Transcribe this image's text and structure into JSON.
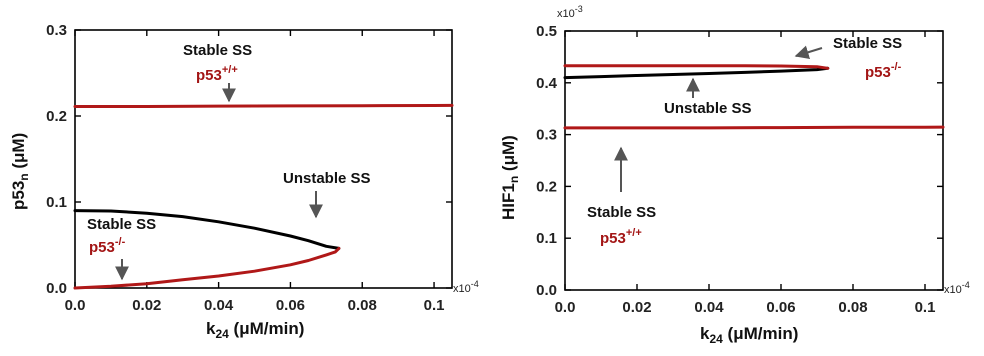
{
  "colors": {
    "stable": "#b01818",
    "unstable": "#000000",
    "arrow": "#555555",
    "label_red": "#a31515"
  },
  "chart_data": [
    {
      "type": "line",
      "title": "",
      "xlabel_main": "k",
      "xlabel_sub": "24",
      "xlabel_unit": " (μM/min)",
      "ylabel_main": "p53",
      "ylabel_sub": "n",
      "ylabel_unit": " (μM)",
      "x_multiplier": "x10",
      "x_multiplier_exp": "-4",
      "xlim": [
        0,
        0.105
      ],
      "ylim": [
        0,
        0.3
      ],
      "xticks": [
        0,
        0.02,
        0.04,
        0.06,
        0.08,
        0.1
      ],
      "xtick_labels": [
        "0.0",
        "0.02",
        "0.04",
        "0.06",
        "0.08",
        "0.1"
      ],
      "yticks": [
        0,
        0.1,
        0.2,
        0.3
      ],
      "ytick_labels": [
        "0.0",
        "0.1",
        "0.2",
        "0.3"
      ],
      "series": [
        {
          "style": "stable",
          "x": [
            0,
            0.02,
            0.04,
            0.06,
            0.08,
            0.1,
            0.105
          ],
          "y": [
            0.211,
            0.211,
            0.2115,
            0.2118,
            0.212,
            0.2122,
            0.2123
          ]
        },
        {
          "style": "unstable",
          "x": [
            0,
            0.01,
            0.02,
            0.03,
            0.04,
            0.05,
            0.06,
            0.065,
            0.07,
            0.0735
          ],
          "y": [
            0.09,
            0.0895,
            0.087,
            0.083,
            0.077,
            0.0695,
            0.0605,
            0.055,
            0.0485,
            0.046
          ]
        },
        {
          "style": "stable",
          "x": [
            0.0735,
            0.0725,
            0.07,
            0.065,
            0.06,
            0.05,
            0.04,
            0.03,
            0.02,
            0.01,
            0
          ],
          "y": [
            0.046,
            0.042,
            0.0385,
            0.032,
            0.027,
            0.0195,
            0.014,
            0.0095,
            0.005,
            0.002,
            0.0
          ]
        }
      ],
      "annotations": [
        {
          "text": "Stable SS",
          "sup": ""
        },
        {
          "text": "p53",
          "sup": "+/+"
        },
        {
          "text": "Unstable SS",
          "sup": ""
        },
        {
          "text": "Stable SS",
          "sup": ""
        },
        {
          "text": "p53",
          "sup": "-/-"
        }
      ]
    },
    {
      "type": "line",
      "title": "",
      "xlabel_main": "k",
      "xlabel_sub": "24",
      "xlabel_unit": " (μM/min)",
      "ylabel_main": "HIF1",
      "ylabel_sub": "n",
      "ylabel_unit": " (μM)",
      "x_multiplier": "x10",
      "x_multiplier_exp": "-4",
      "y_multiplier": "x10",
      "y_multiplier_exp": "-3",
      "xlim": [
        0,
        0.105
      ],
      "ylim": [
        0,
        0.5
      ],
      "xticks": [
        0,
        0.02,
        0.04,
        0.06,
        0.08,
        0.1
      ],
      "xtick_labels": [
        "0.0",
        "0.02",
        "0.04",
        "0.06",
        "0.08",
        "0.1"
      ],
      "yticks": [
        0,
        0.1,
        0.2,
        0.3,
        0.4,
        0.5
      ],
      "ytick_labels": [
        "0.0",
        "0.1",
        "0.2",
        "0.3",
        "0.4",
        "0.5"
      ],
      "series": [
        {
          "style": "stable",
          "x": [
            0,
            0.02,
            0.04,
            0.06,
            0.08,
            0.1,
            0.105
          ],
          "y": [
            0.313,
            0.313,
            0.313,
            0.3135,
            0.314,
            0.3143,
            0.3145
          ]
        },
        {
          "style": "unstable",
          "x": [
            0,
            0.01,
            0.02,
            0.03,
            0.04,
            0.05,
            0.06,
            0.07,
            0.073
          ],
          "y": [
            0.41,
            0.412,
            0.414,
            0.416,
            0.418,
            0.42,
            0.4225,
            0.4255,
            0.428
          ]
        },
        {
          "style": "stable",
          "x": [
            0.073,
            0.07,
            0.06,
            0.05,
            0.04,
            0.03,
            0.02,
            0.01,
            0
          ],
          "y": [
            0.428,
            0.431,
            0.4325,
            0.433,
            0.433,
            0.433,
            0.433,
            0.433,
            0.433
          ]
        }
      ],
      "annotations": [
        {
          "text": "Stable SS",
          "sup": ""
        },
        {
          "text": "p53",
          "sup": "-/-"
        },
        {
          "text": "Unstable SS",
          "sup": ""
        },
        {
          "text": "Stable SS",
          "sup": ""
        },
        {
          "text": "p53",
          "sup": "+/+"
        }
      ]
    }
  ]
}
